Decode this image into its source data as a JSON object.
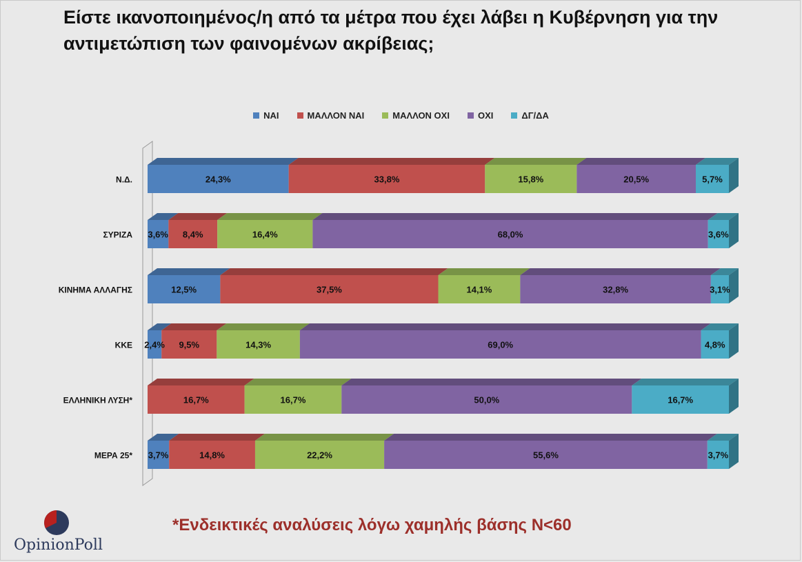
{
  "title": "Είστε ικανοποιημένος/η από τα μέτρα που έχει λάβει η Κυβέρνηση για την αντιμετώπιση των φαινομένων ακρίβειας;",
  "footnote": "*Ενδεικτικές αναλύσεις λόγω χαμηλής βάσης Ν<60",
  "logo": {
    "text": "OpinionPoll",
    "icon": "pie-logo-icon"
  },
  "chart_data": {
    "type": "bar",
    "orientation": "horizontal",
    "stacked": true,
    "three_d": true,
    "legend_position": "top",
    "categories": [
      "Ν.Δ.",
      "ΣΥΡΙΖΑ",
      "ΚΙΝΗΜΑ ΑΛΛΑΓΗΣ",
      "ΚΚΕ",
      "ΕΛΛΗΝΙΚΗ ΛΥΣΗ*",
      "ΜΕΡΑ 25*"
    ],
    "series": [
      {
        "name": "ΝΑΙ",
        "color": "#4f81bd",
        "top": "#3e6594",
        "side": "#36587f",
        "values": [
          24.3,
          3.6,
          12.5,
          2.4,
          0,
          3.7
        ],
        "labels": [
          "24,3%",
          "3,6%",
          "12,5%",
          "2,4%",
          "",
          "3,7%"
        ]
      },
      {
        "name": "ΜΑΛΛΟΝ ΝΑΙ",
        "color": "#c0504d",
        "top": "#963e3c",
        "side": "#833634",
        "values": [
          33.8,
          8.4,
          37.5,
          9.5,
          16.7,
          14.8
        ],
        "labels": [
          "33,8%",
          "8,4%",
          "37,5%",
          "9,5%",
          "16,7%",
          "14,8%"
        ]
      },
      {
        "name": "ΜΑΛΛΟΝ ΟΧΙ",
        "color": "#9bbb59",
        "top": "#789346",
        "side": "#69803c",
        "values": [
          15.8,
          16.4,
          14.1,
          14.3,
          16.7,
          22.2
        ],
        "labels": [
          "15,8%",
          "16,4%",
          "14,1%",
          "14,3%",
          "16,7%",
          "22,2%"
        ]
      },
      {
        "name": "ΟΧΙ",
        "color": "#8064a2",
        "top": "#624d7c",
        "side": "#56436d",
        "values": [
          20.5,
          68.0,
          32.8,
          69.0,
          50.0,
          55.6
        ],
        "labels": [
          "20,5%",
          "68,0%",
          "32,8%",
          "69,0%",
          "50,0%",
          "55,6%"
        ]
      },
      {
        "name": "ΔΓ/ΔΑ",
        "color": "#4bacc6",
        "top": "#3b8799",
        "side": "#317385",
        "values": [
          5.7,
          3.6,
          3.1,
          4.8,
          16.7,
          3.7
        ],
        "labels": [
          "5,7%",
          "3,6%",
          "3,1%",
          "4,8%",
          "16,7%",
          "3,7%"
        ]
      }
    ]
  }
}
